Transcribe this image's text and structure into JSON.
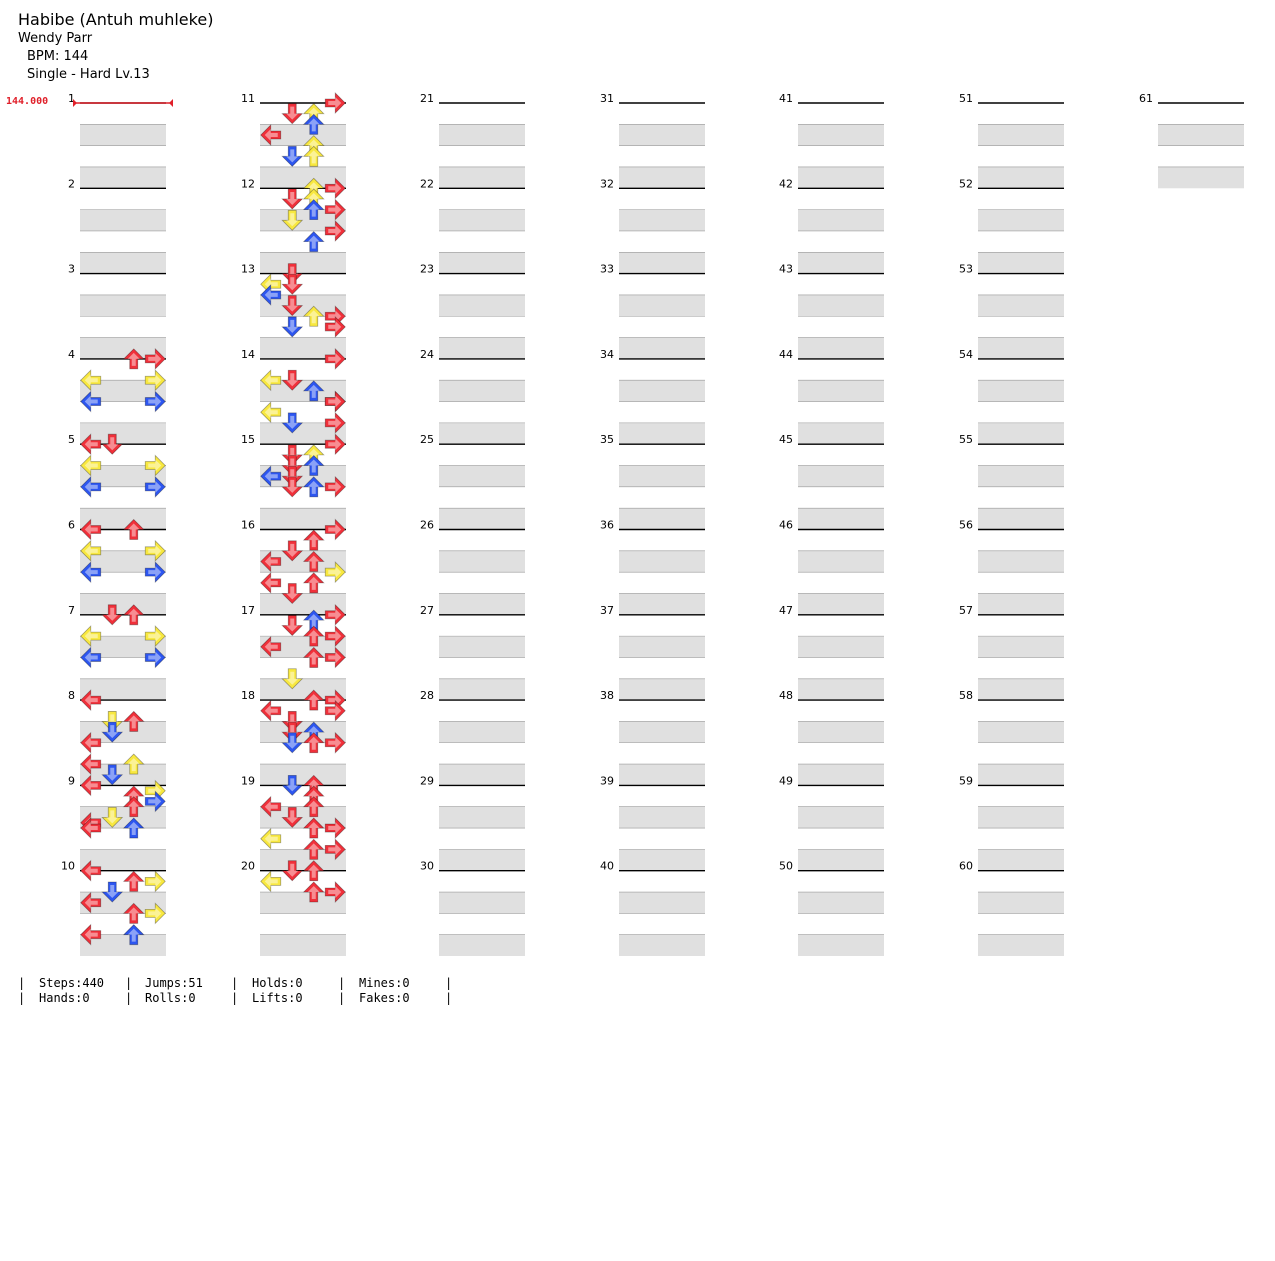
{
  "song": {
    "title": "Habibe (Antuh muhleke)",
    "artist": "Wendy Parr",
    "bpm_label": "BPM: 144",
    "difficulty_label": "Single - Hard  Lv.13"
  },
  "bpm_change": {
    "measure": 1,
    "label": "144.000"
  },
  "colors": {
    "red": "#f0303a",
    "blue": "#2d56f0",
    "yellow": "#f8e840",
    "stripe": "#e0e0e0",
    "marker": "#e0202a"
  },
  "chart": {
    "total_measures": 61,
    "measures_per_column": 10,
    "lanes": [
      "left",
      "down",
      "up",
      "right"
    ],
    "beats": "4 beats per measure, 4 arrows per beat row shown as 16ths where placed",
    "notes": [
      [
        4,
        0,
        "up",
        "red"
      ],
      [
        4,
        0,
        "right",
        "red"
      ],
      [
        4,
        1,
        "left",
        "yellow"
      ],
      [
        4,
        1,
        "right",
        "yellow"
      ],
      [
        4,
        2,
        "left",
        "blue"
      ],
      [
        4,
        2,
        "right",
        "blue"
      ],
      [
        5,
        0,
        "left",
        "red"
      ],
      [
        5,
        0,
        "down",
        "red"
      ],
      [
        5,
        1,
        "left",
        "yellow"
      ],
      [
        5,
        1,
        "right",
        "yellow"
      ],
      [
        5,
        2,
        "left",
        "blue"
      ],
      [
        5,
        2,
        "right",
        "blue"
      ],
      [
        6,
        0,
        "left",
        "red"
      ],
      [
        6,
        0,
        "up",
        "red"
      ],
      [
        6,
        1,
        "left",
        "yellow"
      ],
      [
        6,
        1,
        "right",
        "yellow"
      ],
      [
        6,
        2,
        "left",
        "blue"
      ],
      [
        6,
        2,
        "right",
        "blue"
      ],
      [
        7,
        0,
        "down",
        "red"
      ],
      [
        7,
        0,
        "up",
        "red"
      ],
      [
        7,
        1,
        "left",
        "yellow"
      ],
      [
        7,
        1,
        "right",
        "yellow"
      ],
      [
        7,
        2,
        "left",
        "blue"
      ],
      [
        7,
        2,
        "right",
        "blue"
      ],
      [
        8,
        0,
        "left",
        "red"
      ],
      [
        8,
        1,
        "down",
        "yellow"
      ],
      [
        8,
        1,
        "up",
        "red"
      ],
      [
        8,
        1.5,
        "down",
        "blue"
      ],
      [
        8,
        2,
        "left",
        "red"
      ],
      [
        8,
        3,
        "left",
        "red"
      ],
      [
        8,
        3,
        "up",
        "yellow"
      ],
      [
        8,
        3.5,
        "down",
        "blue"
      ],
      [
        9,
        0,
        "left",
        "red"
      ],
      [
        9,
        0.25,
        "right",
        "yellow"
      ],
      [
        9,
        0.5,
        "up",
        "red"
      ],
      [
        9,
        0.75,
        "right",
        "blue"
      ],
      [
        9,
        1,
        "up",
        "red"
      ],
      [
        9,
        1.5,
        "down",
        "yellow"
      ],
      [
        9,
        1.75,
        "left",
        "red"
      ],
      [
        9,
        2,
        "up",
        "blue"
      ],
      [
        9,
        2,
        "left",
        "red"
      ],
      [
        10,
        0,
        "left",
        "red"
      ],
      [
        10,
        0.5,
        "up",
        "red"
      ],
      [
        10,
        0.5,
        "right",
        "yellow"
      ],
      [
        10,
        1,
        "down",
        "blue"
      ],
      [
        10,
        1.5,
        "left",
        "red"
      ],
      [
        10,
        2,
        "up",
        "red"
      ],
      [
        10,
        2,
        "right",
        "yellow"
      ],
      [
        10,
        3,
        "left",
        "red"
      ],
      [
        10,
        3,
        "up",
        "blue"
      ],
      [
        11,
        0,
        "right",
        "red"
      ],
      [
        11,
        0.5,
        "down",
        "red"
      ],
      [
        11,
        0.5,
        "up",
        "yellow"
      ],
      [
        11,
        1,
        "up",
        "blue"
      ],
      [
        11,
        1.5,
        "left",
        "red"
      ],
      [
        11,
        2,
        "up",
        "yellow"
      ],
      [
        11,
        2.5,
        "down",
        "blue"
      ],
      [
        11,
        2.5,
        "up",
        "yellow"
      ],
      [
        12,
        0,
        "up",
        "yellow"
      ],
      [
        12,
        0,
        "right",
        "red"
      ],
      [
        12,
        0.5,
        "down",
        "red"
      ],
      [
        12,
        0.5,
        "up",
        "yellow"
      ],
      [
        12,
        1,
        "up",
        "blue"
      ],
      [
        12,
        1,
        "right",
        "red"
      ],
      [
        12,
        1.5,
        "down",
        "yellow"
      ],
      [
        12,
        2,
        "right",
        "red"
      ],
      [
        12,
        2.5,
        "up",
        "blue"
      ],
      [
        13,
        0,
        "down",
        "red"
      ],
      [
        13,
        0.5,
        "left",
        "yellow"
      ],
      [
        13,
        0.5,
        "down",
        "red"
      ],
      [
        13,
        1,
        "left",
        "blue"
      ],
      [
        13,
        1.5,
        "down",
        "red"
      ],
      [
        13,
        2,
        "up",
        "yellow"
      ],
      [
        13,
        2,
        "right",
        "red"
      ],
      [
        13,
        2.5,
        "down",
        "blue"
      ],
      [
        13,
        2.5,
        "right",
        "red"
      ],
      [
        14,
        0,
        "right",
        "red"
      ],
      [
        14,
        1,
        "left",
        "yellow"
      ],
      [
        14,
        1,
        "down",
        "red"
      ],
      [
        14,
        1.5,
        "up",
        "blue"
      ],
      [
        14,
        2,
        "right",
        "red"
      ],
      [
        14,
        2,
        "right",
        "red"
      ],
      [
        14,
        2.5,
        "left",
        "yellow"
      ],
      [
        14,
        3,
        "down",
        "blue"
      ],
      [
        14,
        3,
        "right",
        "red"
      ],
      [
        15,
        0,
        "right",
        "red"
      ],
      [
        15,
        0.5,
        "down",
        "red"
      ],
      [
        15,
        0.5,
        "up",
        "yellow"
      ],
      [
        15,
        1,
        "up",
        "blue"
      ],
      [
        15,
        1,
        "down",
        "red"
      ],
      [
        15,
        1.5,
        "left",
        "blue"
      ],
      [
        15,
        1.5,
        "down",
        "red"
      ],
      [
        15,
        2,
        "down",
        "red"
      ],
      [
        15,
        2,
        "up",
        "blue"
      ],
      [
        15,
        2,
        "right",
        "red"
      ],
      [
        16,
        0,
        "right",
        "red"
      ],
      [
        16,
        0.5,
        "up",
        "red"
      ],
      [
        16,
        1,
        "down",
        "red"
      ],
      [
        16,
        1.5,
        "left",
        "red"
      ],
      [
        16,
        1.5,
        "up",
        "red"
      ],
      [
        16,
        2,
        "right",
        "yellow"
      ],
      [
        16,
        2.5,
        "left",
        "red"
      ],
      [
        16,
        2.5,
        "up",
        "red"
      ],
      [
        16,
        3,
        "down",
        "red"
      ],
      [
        17,
        0,
        "right",
        "red"
      ],
      [
        17,
        0.25,
        "up",
        "blue"
      ],
      [
        17,
        0.5,
        "down",
        "red"
      ],
      [
        17,
        1,
        "up",
        "red"
      ],
      [
        17,
        1,
        "right",
        "red"
      ],
      [
        17,
        1.5,
        "left",
        "red"
      ],
      [
        17,
        2,
        "up",
        "red"
      ],
      [
        17,
        2,
        "right",
        "red"
      ],
      [
        17,
        3,
        "down",
        "yellow"
      ],
      [
        18,
        0,
        "up",
        "red"
      ],
      [
        18,
        0,
        "right",
        "red"
      ],
      [
        18,
        0.5,
        "left",
        "red"
      ],
      [
        18,
        0.5,
        "right",
        "red"
      ],
      [
        18,
        1,
        "down",
        "red"
      ],
      [
        18,
        1.5,
        "down",
        "red"
      ],
      [
        18,
        1.5,
        "up",
        "blue"
      ],
      [
        18,
        2,
        "down",
        "blue"
      ],
      [
        18,
        2,
        "up",
        "red"
      ],
      [
        18,
        2,
        "right",
        "red"
      ],
      [
        19,
        0,
        "up",
        "red"
      ],
      [
        19,
        0,
        "down",
        "blue"
      ],
      [
        19,
        0.5,
        "up",
        "red"
      ],
      [
        19,
        1,
        "left",
        "red"
      ],
      [
        19,
        1,
        "up",
        "red"
      ],
      [
        19,
        1.5,
        "down",
        "red"
      ],
      [
        19,
        2,
        "up",
        "red"
      ],
      [
        19,
        2,
        "right",
        "red"
      ],
      [
        19,
        2.5,
        "left",
        "yellow"
      ],
      [
        19,
        3,
        "up",
        "red"
      ],
      [
        19,
        3,
        "right",
        "red"
      ],
      [
        20,
        0,
        "down",
        "red"
      ],
      [
        20,
        0,
        "up",
        "red"
      ],
      [
        20,
        0.5,
        "left",
        "yellow"
      ],
      [
        20,
        1,
        "up",
        "red"
      ],
      [
        20,
        1,
        "right",
        "red"
      ]
    ]
  },
  "measure_labels": [
    "1",
    "2",
    "3",
    "4",
    "5",
    "6",
    "7",
    "8",
    "9",
    "10",
    "11",
    "12",
    "13",
    "14",
    "15",
    "16",
    "17",
    "18",
    "19",
    "20",
    "21",
    "22",
    "23",
    "24",
    "25",
    "26",
    "27",
    "28",
    "29",
    "30",
    "31",
    "32",
    "33",
    "34",
    "35",
    "36",
    "37",
    "38",
    "39",
    "40",
    "41",
    "42",
    "43",
    "44",
    "45",
    "46",
    "47",
    "48",
    "49",
    "50",
    "51",
    "52",
    "53",
    "54",
    "55",
    "56",
    "57",
    "58",
    "59",
    "60",
    "61"
  ],
  "stats": {
    "steps": "Steps:440",
    "hands": "Hands:0",
    "jumps": "Jumps:51",
    "rolls": "Rolls:0",
    "holds": "Holds:0",
    "lifts": "Lifts:0",
    "mines": "Mines:0",
    "fakes": "Fakes:0"
  }
}
